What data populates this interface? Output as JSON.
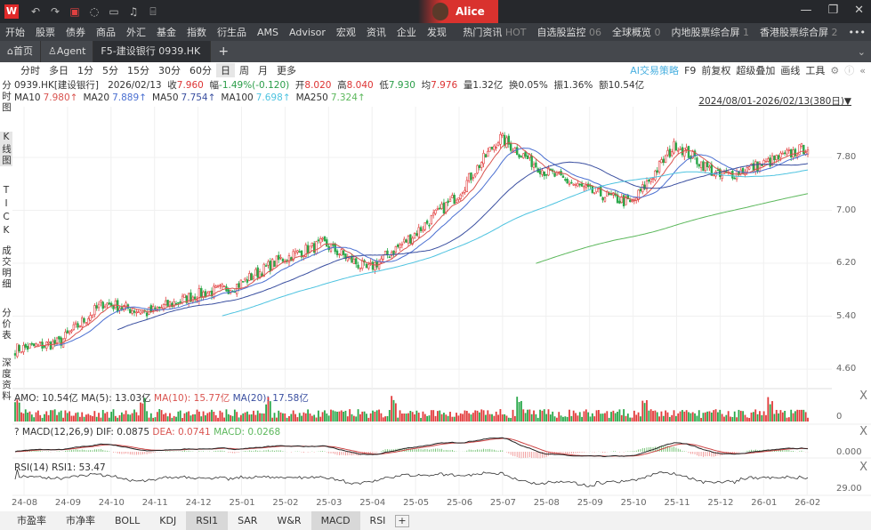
{
  "titlebar": {
    "logo": "W",
    "user": "Alice",
    "icons": [
      "undo-icon",
      "redo-icon",
      "a-icon",
      "chat-icon",
      "monitor-icon",
      "bell-icon",
      "f1-icon"
    ]
  },
  "menu": {
    "items": [
      "开始",
      "股票",
      "债券",
      "商品",
      "外汇",
      "基金",
      "指数",
      "衍生品",
      "AMS",
      "Advisor",
      "宏观",
      "资讯",
      "企业",
      "发现"
    ],
    "right": [
      {
        "label": "热门资讯",
        "badge": "HOT"
      },
      {
        "label": "自选股监控",
        "badge": "06"
      },
      {
        "label": "全球概览",
        "badge": "0"
      },
      {
        "label": "内地股票综合屏",
        "badge": "1"
      },
      {
        "label": "香港股票综合屏",
        "badge": "2"
      }
    ],
    "more": "•••"
  },
  "tabs": {
    "home": "首页",
    "agent": "Agent",
    "active": "F5-建设银行 0939.HK",
    "add": "+"
  },
  "periods": {
    "items": [
      "分时",
      "多日",
      "1分",
      "5分",
      "15分",
      "30分",
      "60分",
      "日",
      "周",
      "月",
      "更多"
    ],
    "selected": "日"
  },
  "toolbar_right": {
    "ai": "AI交易策略",
    "f9": "F9",
    "adj": "前复权",
    "overlay": "超级叠加",
    "draw": "画线",
    "tools": "工具"
  },
  "quote": {
    "code": "0939.HK[建设银行]",
    "date": "2026/02/13",
    "close_l": "收",
    "close": "7.960",
    "chg_l": "幅",
    "chg": "-1.49%(-0.120)",
    "open_l": "开",
    "open": "8.020",
    "high_l": "高",
    "high": "8.040",
    "low_l": "低",
    "low": "7.930",
    "avg_l": "均",
    "avg": "7.976",
    "vol": "量1.32亿",
    "turn": "换0.05%",
    "amp": "振1.36%",
    "amt": "额10.54亿"
  },
  "ma": [
    {
      "label": "MA10",
      "value": "7.980↑",
      "color": "#d9534f"
    },
    {
      "label": "MA20",
      "value": "7.889↑",
      "color": "#4a6fd1"
    },
    {
      "label": "MA50",
      "value": "7.754↑",
      "color": "#3a4fa0"
    },
    {
      "label": "MA100",
      "value": "7.698↑",
      "color": "#4ec3e0"
    },
    {
      "label": "MA250",
      "value": "7.324↑",
      "color": "#5cb85c"
    }
  ],
  "range": "2024/08/01-2026/02/13(380日)▼",
  "side_tabs": [
    "分时图",
    "K线图",
    "TICK",
    "成交明细",
    "分价表",
    "深度资料"
  ],
  "panels": {
    "amo": {
      "label": "AMO: 10.54亿",
      "ma5": "MA(5): 13.03亿",
      "ma10": "MA(10): 15.77亿",
      "ma20": "MA(20): 17.58亿",
      "axis": "0"
    },
    "macd": {
      "q": "?",
      "label": "MACD(12,26,9)",
      "dif": "DIF: 0.0875",
      "dea": "DEA: 0.0741",
      "macd": "MACD: 0.0268",
      "axis": "0.000"
    },
    "rsi": {
      "label": "RSI(14)",
      "rsi1": "RSI1: 53.47",
      "axis": "29.00"
    },
    "close": "X"
  },
  "bottom_tabs": {
    "items": [
      "市盈率",
      "市净率",
      "BOLL",
      "KDJ",
      "RSI1",
      "SAR",
      "W&R",
      "MACD",
      "RSI"
    ],
    "selected": [
      "RSI1",
      "MACD"
    ],
    "add": "+"
  },
  "chart_data": {
    "type": "candlestick",
    "title": "0939.HK 日K",
    "x_ticks": [
      "24-08",
      "24-09",
      "24-10",
      "24-11",
      "24-12",
      "25-01",
      "25-02",
      "25-03",
      "25-04",
      "25-05",
      "25-06",
      "25-07",
      "25-08",
      "25-09",
      "25-10",
      "25-11",
      "25-12",
      "26-01",
      "26-02"
    ],
    "y_ticks": [
      "7.80",
      "7.00",
      "6.20",
      "5.40",
      "4.60"
    ],
    "ylim": [
      4.5,
      8.3
    ],
    "monthly_close": [
      4.9,
      5.0,
      5.6,
      5.45,
      5.7,
      5.85,
      6.25,
      6.5,
      6.1,
      6.6,
      7.2,
      8.1,
      7.6,
      7.3,
      7.1,
      8.0,
      7.5,
      7.7,
      7.96
    ],
    "colors": {
      "up": "#e23b3b",
      "down": "#2aa84a"
    }
  }
}
